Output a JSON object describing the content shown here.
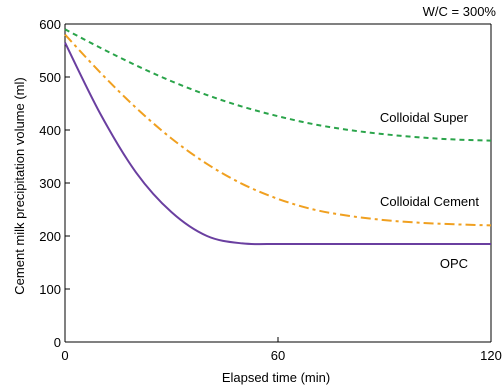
{
  "chart_data": {
    "type": "line",
    "title": "",
    "annotation": "W/C = 300%",
    "xlabel": "Elapsed time (min)",
    "ylabel": "Cement milk precipitation volume (ml)",
    "xlim": [
      0,
      120
    ],
    "ylim": [
      0,
      600
    ],
    "xticks": [
      0,
      60,
      120
    ],
    "yticks": [
      0,
      100,
      200,
      300,
      400,
      500,
      600
    ],
    "grid": false,
    "x": [
      0,
      10,
      20,
      30,
      40,
      50,
      60,
      70,
      80,
      90,
      100,
      110,
      120
    ],
    "series": [
      {
        "name": "Colloidal Super",
        "color": "#2aa44a",
        "dash": "dash",
        "values": [
          590,
          555,
          522,
          492,
          466,
          444,
          426,
          411,
          400,
          392,
          386,
          382,
          380
        ]
      },
      {
        "name": "Colloidal Cement",
        "color": "#f0a020",
        "dash": "dashdot",
        "values": [
          580,
          508,
          442,
          384,
          336,
          298,
          270,
          250,
          238,
          230,
          225,
          222,
          220
        ]
      },
      {
        "name": "OPC",
        "color": "#6a3fa0",
        "dash": "solid",
        "values": [
          565,
          430,
          320,
          245,
          200,
          186,
          185,
          185,
          185,
          185,
          185,
          185,
          185
        ]
      }
    ]
  }
}
